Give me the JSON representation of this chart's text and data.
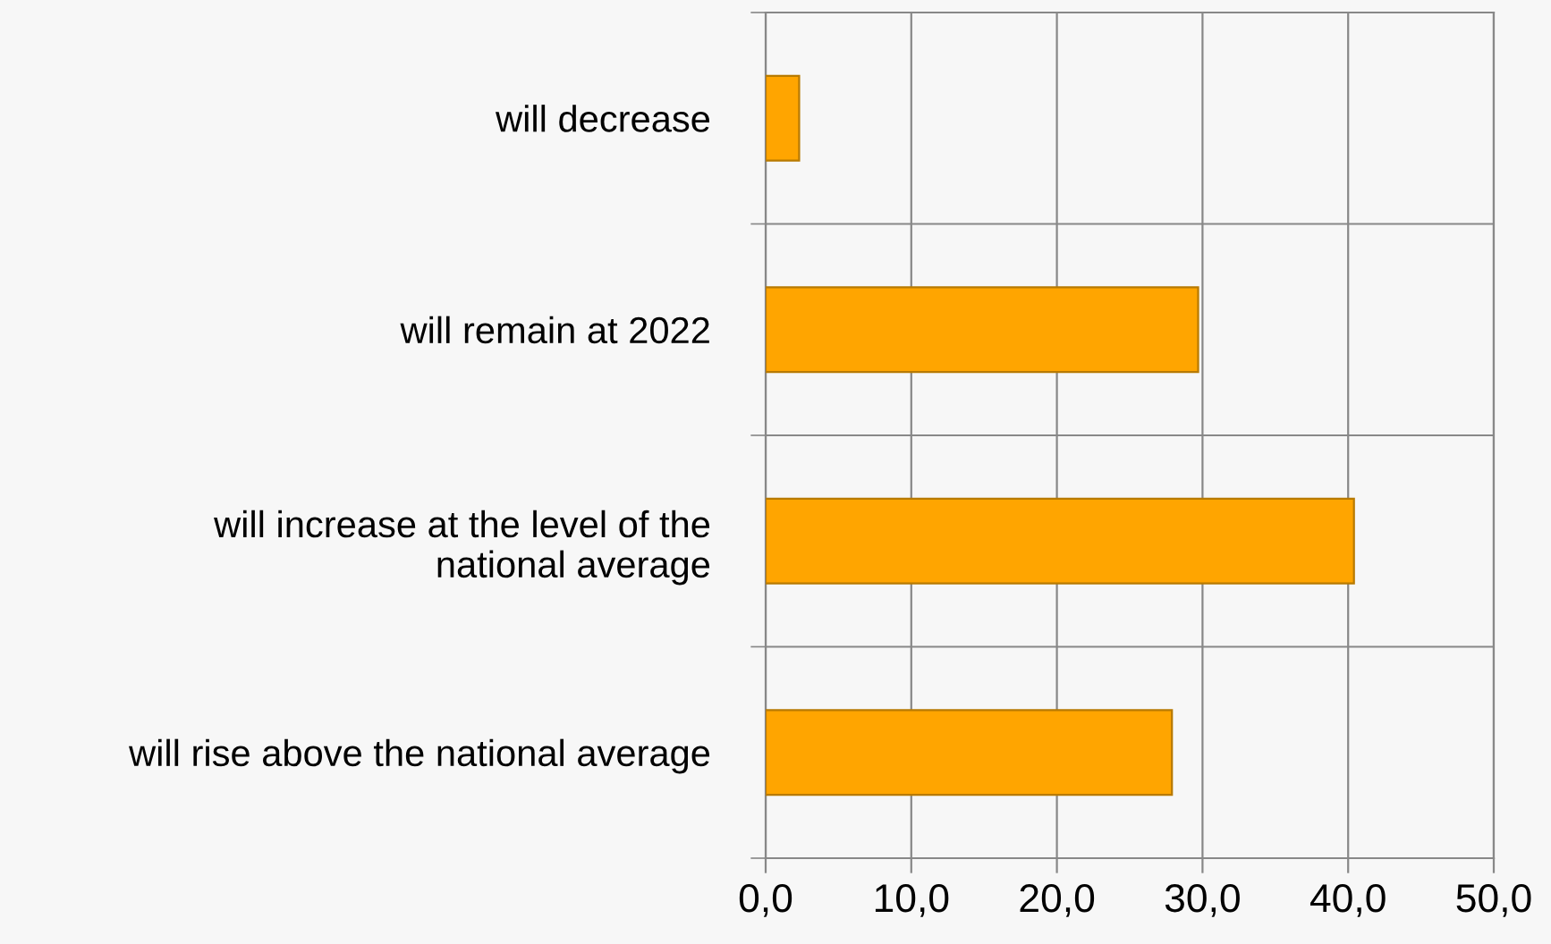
{
  "chart_data": {
    "type": "bar",
    "orientation": "horizontal",
    "categories": [
      "will decrease",
      "will remain at 2022",
      "will increase at the level of the\nnational average",
      "will rise above the national average"
    ],
    "values": [
      2.3,
      29.7,
      40.4,
      27.9
    ],
    "color": "#ffa500",
    "xlim": [
      0,
      50
    ],
    "xticks": [
      {
        "value": 0,
        "label": "0,0"
      },
      {
        "value": 10,
        "label": "10,0"
      },
      {
        "value": 20,
        "label": "20,0"
      },
      {
        "value": 30,
        "label": "30,0"
      },
      {
        "value": 40,
        "label": "40,0"
      },
      {
        "value": 50,
        "label": "50,0"
      }
    ],
    "grid": true
  }
}
